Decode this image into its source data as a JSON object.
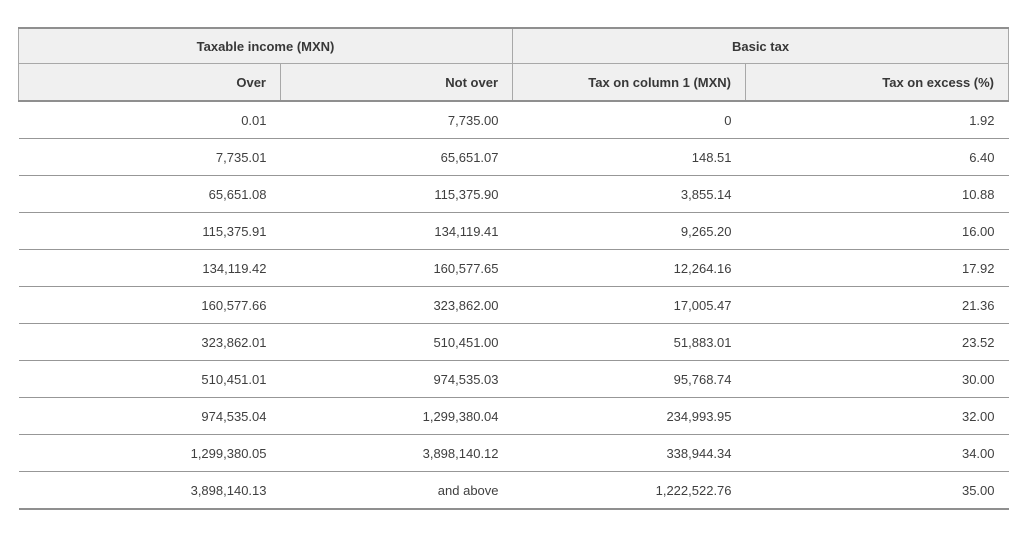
{
  "table": {
    "header_groups": [
      {
        "label": "Taxable income (MXN)"
      },
      {
        "label": "Basic tax"
      }
    ],
    "column_headers": [
      "Over",
      "Not over",
      "Tax on column 1 (MXN)",
      "Tax on excess (%)"
    ],
    "rows": [
      [
        "0.01",
        "7,735.00",
        "0",
        "1.92"
      ],
      [
        "7,735.01",
        "65,651.07",
        "148.51",
        "6.40"
      ],
      [
        "65,651.08",
        "115,375.90",
        "3,855.14",
        "10.88"
      ],
      [
        "115,375.91",
        "134,119.41",
        "9,265.20",
        "16.00"
      ],
      [
        "134,119.42",
        "160,577.65",
        "12,264.16",
        "17.92"
      ],
      [
        "160,577.66",
        "323,862.00",
        "17,005.47",
        "21.36"
      ],
      [
        "323,862.01",
        "510,451.00",
        "51,883.01",
        "23.52"
      ],
      [
        "510,451.01",
        "974,535.03",
        "95,768.74",
        "30.00"
      ],
      [
        "974,535.04",
        "1,299,380.04",
        "234,993.95",
        "32.00"
      ],
      [
        "1,299,380.05",
        "3,898,140.12",
        "338,944.34",
        "34.00"
      ],
      [
        "3,898,140.13",
        "and above",
        "1,222,522.76",
        "35.00"
      ]
    ],
    "colors": {
      "header_bg": "#f0f0f0",
      "border_heavy": "#8f8f8f",
      "border_light": "#a8a8a8",
      "row_divider": "#979797",
      "text": "#3d3d3d",
      "page_bg": "#ffffff"
    }
  }
}
